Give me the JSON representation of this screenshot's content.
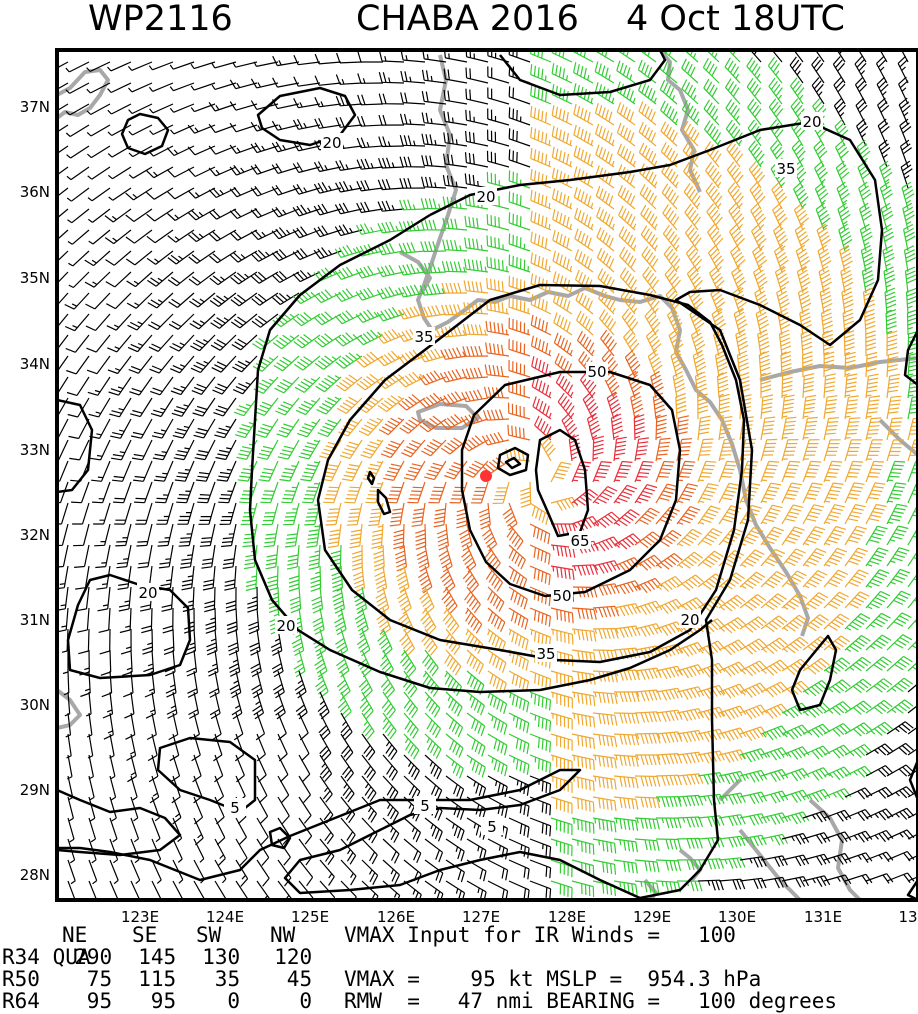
{
  "header": {
    "storm_id": "WP2116",
    "storm_name_year": "CHABA 2016",
    "datetime": "4 Oct 18UTC"
  },
  "map": {
    "lat_labels": [
      "37N",
      "36N",
      "35N",
      "34N",
      "33N",
      "32N",
      "31N",
      "30N",
      "29N",
      "28N"
    ],
    "lon_labels": [
      "123E",
      "124E",
      "125E",
      "126E",
      "127E",
      "128E",
      "129E",
      "130E",
      "131E",
      "13"
    ],
    "contour_labels": [
      "20",
      "20",
      "35",
      "20",
      "35",
      "50",
      "65",
      "50",
      "35",
      "20",
      "20",
      "20",
      "5",
      "5",
      "5"
    ],
    "center_marker_color": "#ff3333",
    "barb_colors": {
      "calm": "#000000",
      "gale_34": "#33cc33",
      "storm_50": "#f0a830",
      "strong_50": "#e86420",
      "hurricane_64": "#e8303c"
    },
    "coastline_color": "#a8a8a8",
    "contour_color": "#000000"
  },
  "table": {
    "header": [
      "QUA",
      "NE",
      "SE",
      "SW",
      "NW"
    ],
    "rows": [
      [
        "R34",
        "290",
        "145",
        "130",
        "120"
      ],
      [
        "R50",
        "75",
        "115",
        "35",
        "45"
      ],
      [
        "R64",
        "95",
        "95",
        "0",
        "0"
      ]
    ]
  },
  "info": {
    "line1": "VMAX Input for IR Winds =   100",
    "line2": "VMAX =    95 kt MSLP =  954.3 hPa",
    "line3": "RMW  =   47 nmi BEARING =   100 degrees"
  }
}
